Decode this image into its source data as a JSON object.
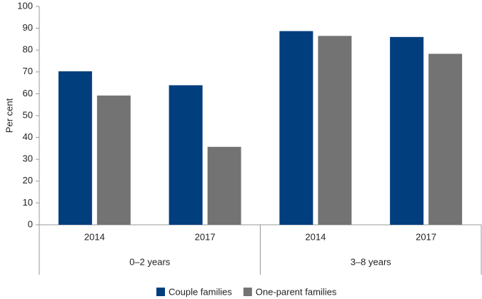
{
  "chart_data": {
    "type": "bar",
    "y_label": "Per cent",
    "categories": [
      "2014",
      "2017",
      "2014",
      "2017"
    ],
    "groups": [
      "0–2 years",
      "3–8 years"
    ],
    "series": [
      {
        "name": "Couple families",
        "color": "#003e7e",
        "values": [
          70.3,
          63.9,
          88.7,
          86.0
        ]
      },
      {
        "name": "One-parent families",
        "color": "#747374",
        "values": [
          59.2,
          35.7,
          86.5,
          78.3
        ]
      }
    ],
    "ylim": [
      0,
      100
    ],
    "yticks": [
      0,
      10,
      20,
      30,
      40,
      50,
      60,
      70,
      80,
      90,
      100
    ],
    "grid": false
  }
}
